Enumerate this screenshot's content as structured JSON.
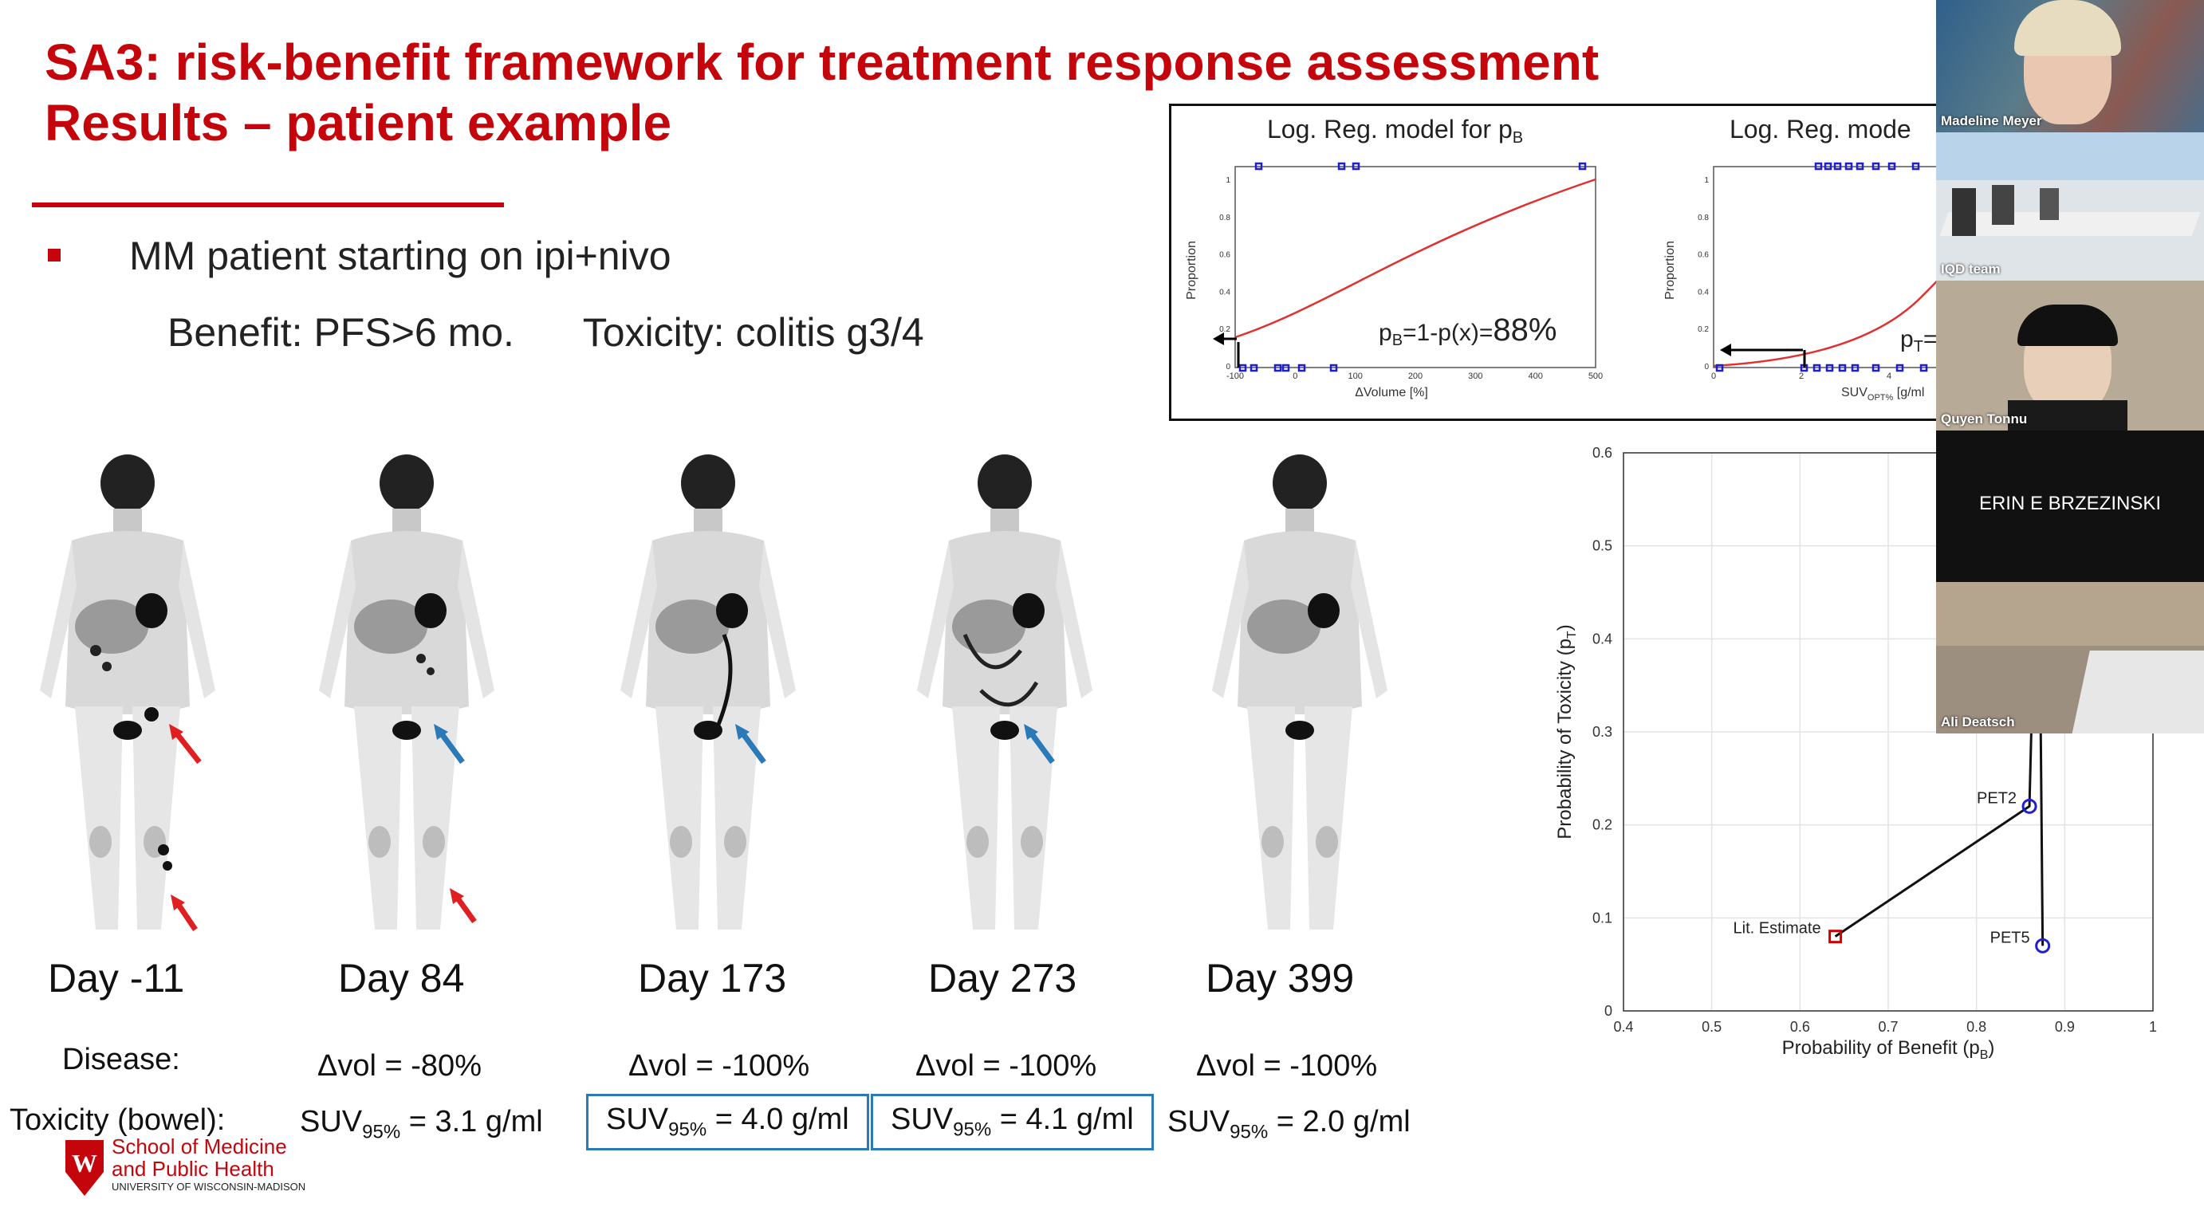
{
  "slide": {
    "title_line1": "SA3: risk-benefit framework for treatment response assessment",
    "title_line2": "Results – patient example",
    "bullet": "MM patient starting on ipi+nivo",
    "benefit": "Benefit: PFS>6 mo.",
    "toxicity": "Toxicity: colitis g3/4",
    "disease_label": "Disease:",
    "tox_label": "Toxicity (bowel):",
    "suv_prefix": "SUV",
    "suv_sub": "95%",
    "days": [
      {
        "day": "Day -11",
        "dvol": "",
        "suv": "",
        "boxed": false
      },
      {
        "day": "Day 84",
        "dvol": "Δvol = -80%",
        "suv": " = 3.1 g/ml",
        "boxed": false
      },
      {
        "day": "Day 173",
        "dvol": "Δvol = -100%",
        "suv": " = 4.0 g/ml",
        "boxed": true
      },
      {
        "day": "Day 273",
        "dvol": "Δvol = -100%",
        "suv": " = 4.1 g/ml",
        "boxed": true
      },
      {
        "day": "Day 399",
        "dvol": "Δvol = -100%",
        "suv": " = 2.0 g/ml",
        "boxed": false
      }
    ],
    "logo_line1": "School of Medicine",
    "logo_line2": "and Public Health",
    "logo_line3": "UNIVERSITY OF WISCONSIN-MADISON"
  },
  "inset": {
    "left_title": "Log. Reg. model for p",
    "left_title_sub": "B",
    "right_title": "Log. Reg. mode",
    "left_ylabel": "Proportion",
    "right_ylabel": "Proportion",
    "left_xlabel": "ΔVolume [%]",
    "right_xlabel_main": "SUV",
    "right_xlabel_sub": "OPT%",
    "right_xlabel_unit": " [g/ml",
    "formula_left_p": "p",
    "formula_left_sub": "B",
    "formula_left_rest": "=1-p(x)=",
    "formula_left_value": "88%",
    "formula_right_p": "p",
    "formula_right_sub": "T",
    "formula_right_rest": "=",
    "left_yticks": [
      "0",
      "0.2",
      "0.4",
      "0.6",
      "0.8",
      "1"
    ],
    "left_xticks": [
      "-100",
      "0",
      "100",
      "200",
      "300",
      "400",
      "500"
    ],
    "right_yticks": [
      "0",
      "0.2",
      "0.4",
      "0.6",
      "0.8",
      "1"
    ],
    "right_xticks": [
      "0",
      "2",
      "4"
    ]
  },
  "chart_data": {
    "type": "scatter",
    "title": "",
    "xlabel": "Probability of Benefit (p",
    "xlabel_sub": "B",
    "ylabel": "Probability of Toxicity (p",
    "ylabel_sub": "T",
    "xlim": [
      0.4,
      1
    ],
    "ylim": [
      0,
      0.6
    ],
    "xticks": [
      "0.4",
      "0.5",
      "0.6",
      "0.7",
      "0.8",
      "0.9",
      "1"
    ],
    "yticks": [
      "0",
      "0.1",
      "0.2",
      "0.3",
      "0.4",
      "0.5",
      "0.6"
    ],
    "grid": true,
    "points": [
      {
        "label": "Lit. Estimate",
        "x": 0.64,
        "y": 0.08,
        "marker": "square",
        "color": "#d00000"
      },
      {
        "label": "PET2",
        "x": 0.86,
        "y": 0.22,
        "marker": "circle",
        "color": "#1f1fd0"
      },
      {
        "label": "PET5",
        "x": 0.875,
        "y": 0.07,
        "marker": "circle",
        "color": "#1f1fd0"
      }
    ],
    "path": [
      {
        "x": 0.64,
        "y": 0.08
      },
      {
        "x": 0.86,
        "y": 0.22
      },
      {
        "x": 0.87,
        "y": 0.6
      },
      {
        "x": 0.875,
        "y": 0.07
      }
    ]
  },
  "participants": [
    {
      "name": "Madeline Meyer"
    },
    {
      "name": "IQD team"
    },
    {
      "name": "Quyen Tonnu"
    },
    {
      "name": "ERIN E BRZEZINSKI"
    },
    {
      "name": "Ali Deatsch"
    }
  ],
  "colors": {
    "accent": "#c5050c",
    "box": "#2a7ab8",
    "curve": "#e03030",
    "marker": "#1f1fd0"
  }
}
